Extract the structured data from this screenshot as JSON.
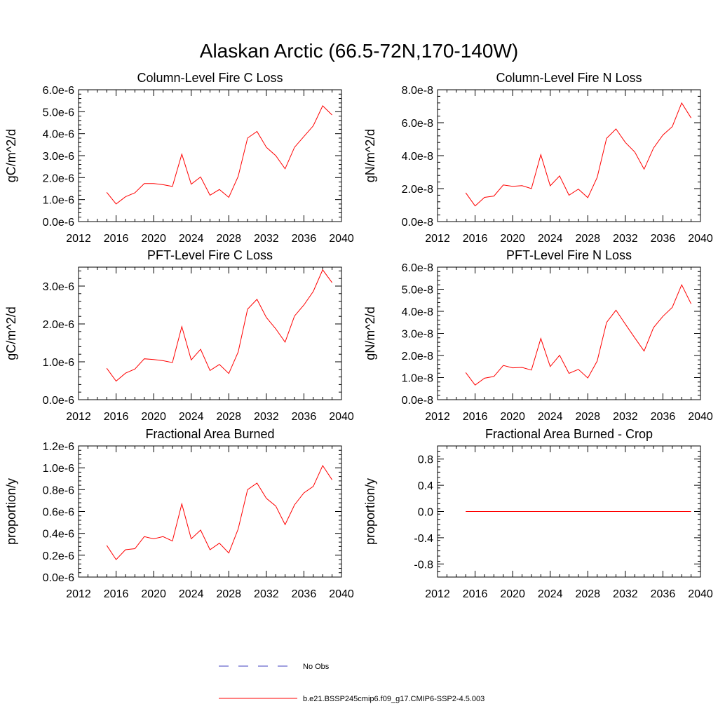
{
  "figure_title": "Alaskan Arctic (66.5-72N,170-140W)",
  "legend": [
    {
      "label": "No Obs",
      "color": "#3f3fbf",
      "style": "dashed"
    },
    {
      "label": "b.e21.BSSP245cmip6.f09_g17.CMIP6-SSP2-4.5.003",
      "color": "#ff0000",
      "style": "solid"
    }
  ],
  "chart_data": [
    {
      "type": "line",
      "title": "Column-Level Fire C Loss",
      "xlabel": "",
      "ylabel": "gC/m^2/d",
      "xlim": [
        2012,
        2040
      ],
      "xticks": [
        2012,
        2016,
        2020,
        2024,
        2028,
        2032,
        2036,
        2040
      ],
      "ylim": [
        0.0,
        6.0
      ],
      "yticks": [
        0,
        1,
        2,
        3,
        4,
        5,
        6
      ],
      "yticklabels": [
        "0.0e-6",
        "1.0e-6",
        "2.0e-6",
        "3.0e-6",
        "4.0e-6",
        "5.0e-6",
        "6.0e-6"
      ],
      "x": [
        2015,
        2016,
        2017,
        2018,
        2019,
        2020,
        2021,
        2022,
        2023,
        2024,
        2025,
        2026,
        2027,
        2028,
        2029,
        2030,
        2031,
        2032,
        2033,
        2034,
        2035,
        2036,
        2037,
        2038,
        2039
      ],
      "series": [
        {
          "values": [
            1.33,
            0.8,
            1.13,
            1.31,
            1.73,
            1.73,
            1.68,
            1.6,
            3.07,
            1.7,
            2.03,
            1.2,
            1.46,
            1.1,
            2.06,
            3.8,
            4.1,
            3.38,
            3.0,
            2.4,
            3.38,
            3.87,
            4.36,
            5.27,
            4.85
          ]
        }
      ],
      "grid": false
    },
    {
      "type": "line",
      "title": "Column-Level Fire N Loss",
      "xlabel": "",
      "ylabel": "gN/m^2/d",
      "xlim": [
        2012,
        2040
      ],
      "xticks": [
        2012,
        2016,
        2020,
        2024,
        2028,
        2032,
        2036,
        2040
      ],
      "ylim": [
        0.0,
        8.0
      ],
      "yticks": [
        0,
        2,
        4,
        6,
        8
      ],
      "yticklabels": [
        "0.0e-8",
        "2.0e-8",
        "4.0e-8",
        "6.0e-8",
        "8.0e-8"
      ],
      "x": [
        2015,
        2016,
        2017,
        2018,
        2019,
        2020,
        2021,
        2022,
        2023,
        2024,
        2025,
        2026,
        2027,
        2028,
        2029,
        2030,
        2031,
        2032,
        2033,
        2034,
        2035,
        2036,
        2037,
        2038,
        2039
      ],
      "series": [
        {
          "values": [
            1.75,
            0.95,
            1.47,
            1.55,
            2.22,
            2.14,
            2.18,
            2.0,
            4.06,
            2.17,
            2.77,
            1.6,
            1.97,
            1.45,
            2.68,
            5.05,
            5.62,
            4.8,
            4.22,
            3.18,
            4.46,
            5.25,
            5.76,
            7.2,
            6.29
          ]
        }
      ],
      "grid": false
    },
    {
      "type": "line",
      "title": "PFT-Level Fire C Loss",
      "xlabel": "",
      "ylabel": "gC/m^2/d",
      "xlim": [
        2012,
        2040
      ],
      "xticks": [
        2012,
        2016,
        2020,
        2024,
        2028,
        2032,
        2036,
        2040
      ],
      "ylim": [
        0.0,
        3.5
      ],
      "yticks": [
        0,
        1,
        2,
        3
      ],
      "yticklabels": [
        "0.0e-6",
        "1.0e-6",
        "2.0e-6",
        "3.0e-6"
      ],
      "x": [
        2015,
        2016,
        2017,
        2018,
        2019,
        2020,
        2021,
        2022,
        2023,
        2024,
        2025,
        2026,
        2027,
        2028,
        2029,
        2030,
        2031,
        2032,
        2033,
        2034,
        2035,
        2036,
        2037,
        2038,
        2039
      ],
      "series": [
        {
          "values": [
            0.83,
            0.49,
            0.7,
            0.81,
            1.08,
            1.06,
            1.03,
            0.98,
            1.93,
            1.05,
            1.33,
            0.77,
            0.93,
            0.69,
            1.26,
            2.39,
            2.65,
            2.17,
            1.87,
            1.52,
            2.21,
            2.5,
            2.86,
            3.43,
            3.09
          ]
        }
      ],
      "grid": false
    },
    {
      "type": "line",
      "title": "PFT-Level Fire N Loss",
      "xlabel": "",
      "ylabel": "gN/m^2/d",
      "xlim": [
        2012,
        2040
      ],
      "xticks": [
        2012,
        2016,
        2020,
        2024,
        2028,
        2032,
        2036,
        2040
      ],
      "ylim": [
        0.0,
        6.0
      ],
      "yticks": [
        0,
        1,
        2,
        3,
        4,
        5,
        6
      ],
      "yticklabels": [
        "0.0e-8",
        "1.0e-8",
        "2.0e-8",
        "3.0e-8",
        "4.0e-8",
        "5.0e-8",
        "6.0e-8"
      ],
      "x": [
        2015,
        2016,
        2017,
        2018,
        2019,
        2020,
        2021,
        2022,
        2023,
        2024,
        2025,
        2026,
        2027,
        2028,
        2029,
        2030,
        2031,
        2032,
        2033,
        2034,
        2035,
        2036,
        2037,
        2038,
        2039
      ],
      "series": [
        {
          "values": [
            1.23,
            0.66,
            0.97,
            1.05,
            1.55,
            1.44,
            1.46,
            1.34,
            2.77,
            1.5,
            2.01,
            1.19,
            1.37,
            0.98,
            1.75,
            3.5,
            4.05,
            3.42,
            2.8,
            2.2,
            3.26,
            3.77,
            4.18,
            5.2,
            4.34
          ]
        }
      ],
      "grid": false
    },
    {
      "type": "line",
      "title": "Fractional Area Burned",
      "xlabel": "",
      "ylabel": "proportion/y",
      "xlim": [
        2012,
        2040
      ],
      "xticks": [
        2012,
        2016,
        2020,
        2024,
        2028,
        2032,
        2036,
        2040
      ],
      "ylim": [
        0.0,
        1.2
      ],
      "yticks": [
        0,
        0.2,
        0.4,
        0.6,
        0.8,
        1.0,
        1.2
      ],
      "yticklabels": [
        "0.0e-6",
        "0.2e-6",
        "0.4e-6",
        "0.6e-6",
        "0.8e-6",
        "1.0e-6",
        "1.2e-6"
      ],
      "x": [
        2015,
        2016,
        2017,
        2018,
        2019,
        2020,
        2021,
        2022,
        2023,
        2024,
        2025,
        2026,
        2027,
        2028,
        2029,
        2030,
        2031,
        2032,
        2033,
        2034,
        2035,
        2036,
        2037,
        2038,
        2039
      ],
      "series": [
        {
          "values": [
            0.29,
            0.16,
            0.25,
            0.26,
            0.37,
            0.35,
            0.37,
            0.33,
            0.67,
            0.35,
            0.43,
            0.25,
            0.31,
            0.22,
            0.44,
            0.8,
            0.86,
            0.72,
            0.65,
            0.48,
            0.66,
            0.77,
            0.83,
            1.02,
            0.89
          ]
        }
      ],
      "grid": false
    },
    {
      "type": "line",
      "title": "Fractional Area Burned - Crop",
      "xlabel": "",
      "ylabel": "proportion/y",
      "xlim": [
        2012,
        2040
      ],
      "xticks": [
        2012,
        2016,
        2020,
        2024,
        2028,
        2032,
        2036,
        2040
      ],
      "ylim": [
        -1.0,
        1.0
      ],
      "yticks": [
        -0.8,
        -0.4,
        0.0,
        0.4,
        0.8
      ],
      "yticklabels": [
        "-0.8",
        "-0.4",
        "0.0",
        "0.4",
        "0.8"
      ],
      "x": [
        2015,
        2016,
        2017,
        2018,
        2019,
        2020,
        2021,
        2022,
        2023,
        2024,
        2025,
        2026,
        2027,
        2028,
        2029,
        2030,
        2031,
        2032,
        2033,
        2034,
        2035,
        2036,
        2037,
        2038,
        2039
      ],
      "series": [
        {
          "values": [
            0,
            0,
            0,
            0,
            0,
            0,
            0,
            0,
            0,
            0,
            0,
            0,
            0,
            0,
            0,
            0,
            0,
            0,
            0,
            0,
            0,
            0,
            0,
            0,
            0
          ]
        }
      ],
      "grid": false
    }
  ]
}
